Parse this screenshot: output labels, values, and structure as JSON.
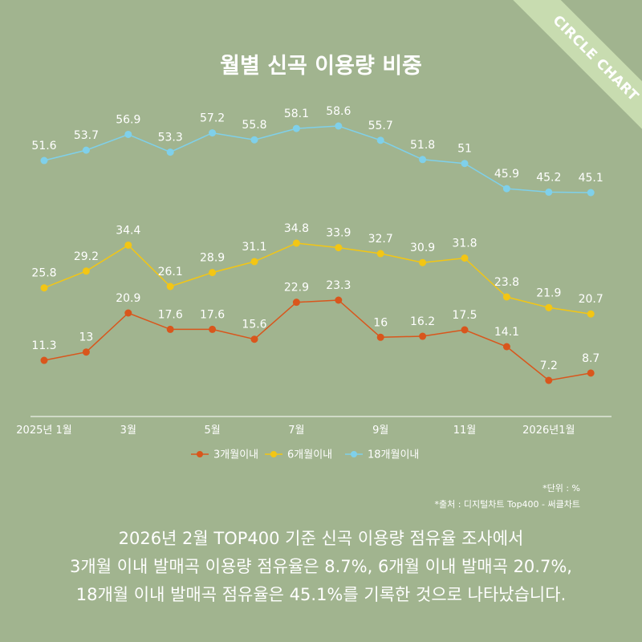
{
  "badge": "CIRCLE CHART",
  "colors": {
    "background": "#a1b48f",
    "series": [
      "#d9561c",
      "#f3c614",
      "#7fd0ea"
    ],
    "text": "#ffffff"
  },
  "chart_data": {
    "type": "line",
    "title": "월별 신곡 이용량 비중",
    "x_labels": [
      "2025년 1월",
      "",
      "3월",
      "",
      "5월",
      "",
      "7월",
      "",
      "9월",
      "",
      "11월",
      "",
      "2026년1월",
      ""
    ],
    "series": [
      {
        "name": "3개월이내",
        "values": [
          11.3,
          13,
          20.9,
          17.6,
          17.6,
          15.6,
          22.9,
          23.3,
          16,
          16.2,
          17.5,
          14.1,
          7.2,
          8.7
        ]
      },
      {
        "name": "6개월이내",
        "values": [
          25.8,
          29.2,
          34.4,
          26.1,
          28.9,
          31.1,
          34.8,
          33.9,
          32.7,
          30.9,
          31.8,
          23.8,
          21.9,
          20.7
        ]
      },
      {
        "name": "18개월이내",
        "values": [
          51.6,
          53.7,
          56.9,
          53.3,
          57.2,
          55.8,
          58.1,
          58.6,
          55.7,
          51.8,
          51,
          45.9,
          45.2,
          45.1
        ]
      }
    ],
    "legend_position": "bottom",
    "grid": false
  },
  "notes": {
    "unit": "*단위 : %",
    "source": "*출처 :  디지털차트 Top400 - 써클차트"
  },
  "summary": [
    "2026년 2월 TOP400 기준 신곡 이용량 점유율 조사에서",
    "3개월 이내 발매곡 이용량 점유율은 8.7%, 6개월 이내 발매곡 20.7%,",
    "18개월 이내 발매곡 점유율은 45.1%를 기록한 것으로 나타났습니다."
  ]
}
